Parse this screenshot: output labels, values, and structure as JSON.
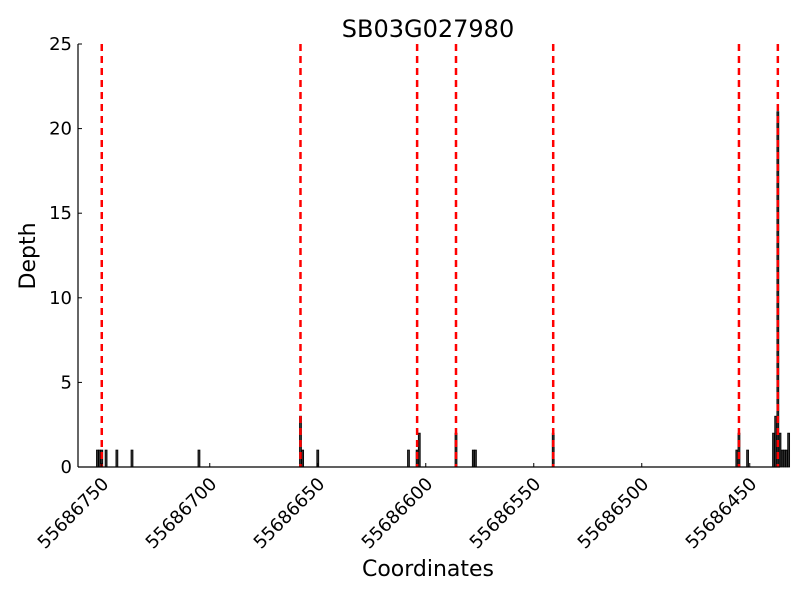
{
  "chart_data": {
    "type": "bar",
    "title": "SB03G027980",
    "xlabel": "Coordinates",
    "ylabel": "Depth",
    "x_reversed": true,
    "xlim": [
      55686761,
      55686436
    ],
    "ylim": [
      0,
      25
    ],
    "xticks": [
      55686750,
      55686700,
      55686650,
      55686600,
      55686550,
      55686500,
      55686450
    ],
    "yticks": [
      0,
      5,
      10,
      15,
      20,
      25
    ],
    "grid": false,
    "bars": [
      {
        "x": 55686752,
        "depth": 1
      },
      {
        "x": 55686751,
        "depth": 1
      },
      {
        "x": 55686750,
        "depth": 1
      },
      {
        "x": 55686748,
        "depth": 1
      },
      {
        "x": 55686743,
        "depth": 1
      },
      {
        "x": 55686736,
        "depth": 1
      },
      {
        "x": 55686705,
        "depth": 1
      },
      {
        "x": 55686658,
        "depth": 3
      },
      {
        "x": 55686657,
        "depth": 1
      },
      {
        "x": 55686650,
        "depth": 1
      },
      {
        "x": 55686608,
        "depth": 1
      },
      {
        "x": 55686604,
        "depth": 1
      },
      {
        "x": 55686603,
        "depth": 2
      },
      {
        "x": 55686586,
        "depth": 2
      },
      {
        "x": 55686578,
        "depth": 1
      },
      {
        "x": 55686577,
        "depth": 1
      },
      {
        "x": 55686541,
        "depth": 2
      },
      {
        "x": 55686456,
        "depth": 1
      },
      {
        "x": 55686455,
        "depth": 2
      },
      {
        "x": 55686451,
        "depth": 1
      },
      {
        "x": 55686439,
        "depth": 2
      },
      {
        "x": 55686438,
        "depth": 3
      },
      {
        "x": 55686437,
        "depth": 21
      },
      {
        "x": 55686436,
        "depth": 2
      },
      {
        "x": 55686435,
        "depth": 1
      },
      {
        "x": 55686434,
        "depth": 1
      },
      {
        "x": 55686433,
        "depth": 1
      },
      {
        "x": 55686432,
        "depth": 2
      }
    ],
    "markers": [
      55686750,
      55686658,
      55686604,
      55686586,
      55686541,
      55686455,
      55686437
    ],
    "colors": {
      "bars": "#333333",
      "bar_edge": "#000000",
      "markers": "#ff0000",
      "axes": "#000000"
    }
  }
}
